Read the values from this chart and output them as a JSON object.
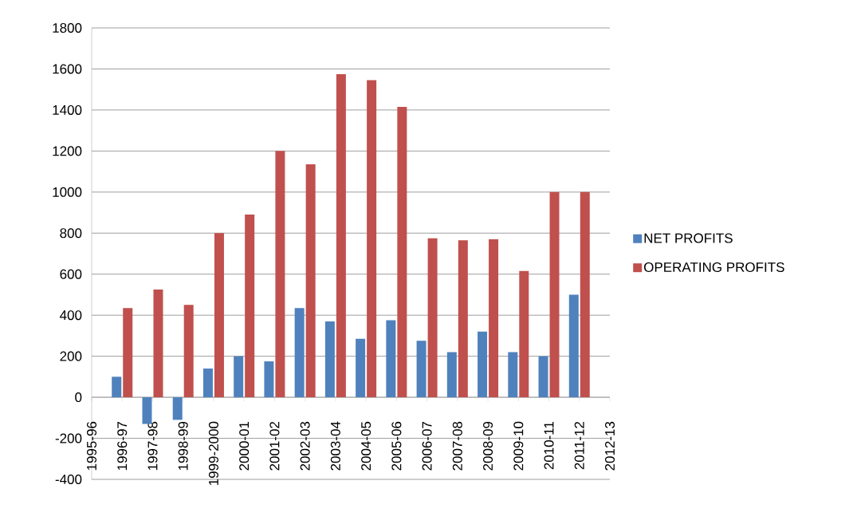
{
  "chart_data": {
    "type": "bar",
    "categories": [
      "1995-96",
      "1996-97",
      "1997-98",
      "1998-99",
      "1999-2000",
      "2000-01",
      "2001-02",
      "2002-03",
      "2003-04",
      "2004-05",
      "2005-06",
      "2006-07",
      "2007-08",
      "2008-09",
      "2009-10",
      "2010-11",
      "2011-12",
      "2012-13"
    ],
    "series": [
      {
        "name": "NET PROFITS",
        "color": "#4f81bd",
        "values": [
          null,
          100,
          -130,
          -110,
          140,
          200,
          175,
          435,
          370,
          285,
          375,
          275,
          220,
          320,
          220,
          200,
          500,
          null
        ]
      },
      {
        "name": "OPERATING PROFITS",
        "color": "#c0504d",
        "values": [
          null,
          435,
          525,
          450,
          800,
          890,
          1200,
          1135,
          1575,
          1545,
          1415,
          775,
          765,
          770,
          615,
          1000,
          1000,
          null
        ]
      }
    ],
    "ylim": [
      -400,
      1800
    ],
    "yticks": [
      -400,
      -200,
      0,
      200,
      400,
      600,
      800,
      1000,
      1200,
      1400,
      1600,
      1800
    ],
    "grid": "y",
    "legend": "right"
  }
}
